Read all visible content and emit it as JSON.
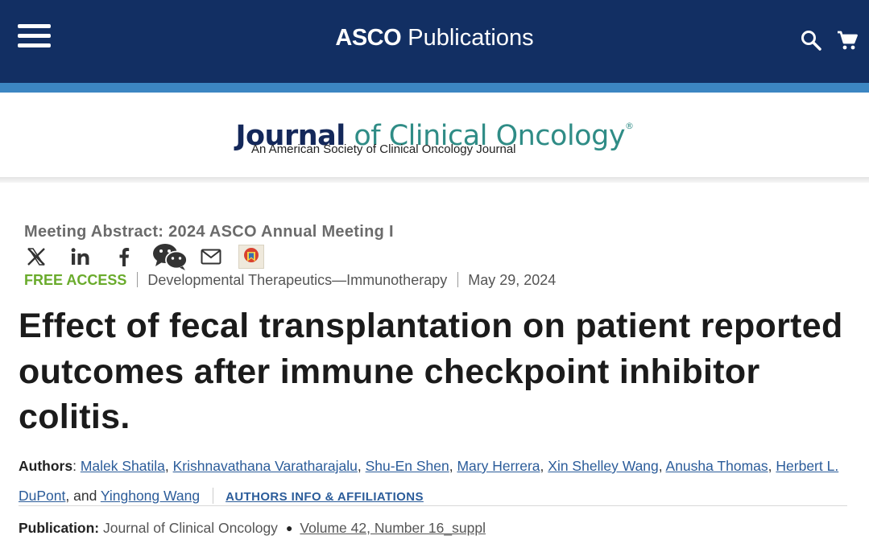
{
  "header": {
    "brand_bold": "ASCO",
    "brand_light": " Publications",
    "icons": {
      "menu": "hamburger-menu-icon",
      "search": "search-icon",
      "cart": "cart-icon"
    },
    "colors": {
      "navbar": "#122f63",
      "stripe": "#3c86c2"
    }
  },
  "journal": {
    "title_bold": "Journal",
    "title_rest": " of Clinical Oncology",
    "registered": "®",
    "subtitle": "An American Society of Clinical Oncology Journal",
    "colors": {
      "navy": "#14285a",
      "teal": "#2f8c86"
    }
  },
  "article": {
    "meeting": "Meeting Abstract: 2024 ASCO Annual Meeting I",
    "share_icons": [
      "x-icon",
      "linkedin-icon",
      "facebook-icon",
      "wechat-icon",
      "email-icon",
      "mendeley-icon"
    ],
    "access": "FREE ACCESS",
    "category": "Developmental Therapeutics—Immunotherapy",
    "date": "May 29, 2024",
    "title": "Effect of fecal transplantation on patient reported outcomes after immune checkpoint inhibitor colitis.",
    "authors_label": "Authors",
    "authors": [
      "Malek Shatila",
      "Krishnavathana Varatharajalu",
      "Shu-En Shen",
      "Mary Herrera",
      "Xin Shelley Wang",
      "Anusha Thomas",
      "Herbert L. DuPont",
      "Yinghong Wang"
    ],
    "and_text": ", and ",
    "affiliations_link": "AUTHORS INFO & AFFILIATIONS",
    "publication_label": "Publication:",
    "journal_name": "Journal of Clinical Oncology",
    "volume": "Volume 42, Number 16_suppl",
    "colors": {
      "free_access": "#6aab2c",
      "link": "#2b5c9a"
    }
  }
}
